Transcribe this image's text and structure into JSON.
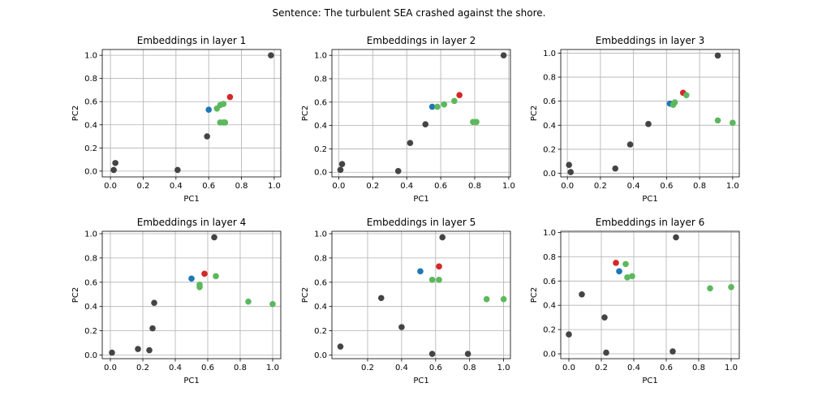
{
  "figure": {
    "suptitle": "Sentence: The turbulent SEA crashed against the shore."
  },
  "colors": {
    "other": "#444444",
    "the": "#1f77b4",
    "sea": "#d62728",
    "green": "#5cb85c",
    "grid": "#b0b0b0"
  },
  "chart_data": [
    {
      "type": "scatter",
      "title": "Embeddings in layer 1",
      "xlabel": "PC1",
      "ylabel": "PC2",
      "xlim": [
        -0.05,
        1.04
      ],
      "ylim": [
        -0.05,
        1.05
      ],
      "xticks": [
        "0.0",
        "0.2",
        "0.4",
        "0.6",
        "0.8",
        "1.0"
      ],
      "yticks": [
        "0.0",
        "0.2",
        "0.4",
        "0.6",
        "0.8",
        "1.0"
      ],
      "grid": true,
      "points": [
        {
          "x": 0.98,
          "y": 1.0,
          "c": "other"
        },
        {
          "x": 0.02,
          "y": 0.01,
          "c": "other"
        },
        {
          "x": 0.03,
          "y": 0.07,
          "c": "other"
        },
        {
          "x": 0.41,
          "y": 0.01,
          "c": "other"
        },
        {
          "x": 0.59,
          "y": 0.3,
          "c": "other"
        },
        {
          "x": 0.6,
          "y": 0.53,
          "c": "the"
        },
        {
          "x": 0.73,
          "y": 0.64,
          "c": "sea"
        },
        {
          "x": 0.65,
          "y": 0.54,
          "c": "green"
        },
        {
          "x": 0.67,
          "y": 0.57,
          "c": "green"
        },
        {
          "x": 0.69,
          "y": 0.58,
          "c": "green"
        },
        {
          "x": 0.67,
          "y": 0.42,
          "c": "green"
        },
        {
          "x": 0.69,
          "y": 0.42,
          "c": "green"
        },
        {
          "x": 0.7,
          "y": 0.42,
          "c": "green"
        }
      ]
    },
    {
      "type": "scatter",
      "title": "Embeddings in layer 2",
      "xlabel": "PC1",
      "ylabel": "PC2",
      "xlim": [
        -0.04,
        1.01
      ],
      "ylim": [
        -0.04,
        1.05
      ],
      "xticks": [
        "0.0",
        "0.2",
        "0.4",
        "0.6",
        "0.8",
        "1.0"
      ],
      "yticks": [
        "0.0",
        "0.2",
        "0.4",
        "0.6",
        "0.8",
        "1.0"
      ],
      "grid": true,
      "points": [
        {
          "x": 0.97,
          "y": 1.0,
          "c": "other"
        },
        {
          "x": 0.01,
          "y": 0.02,
          "c": "other"
        },
        {
          "x": 0.02,
          "y": 0.07,
          "c": "other"
        },
        {
          "x": 0.35,
          "y": 0.01,
          "c": "other"
        },
        {
          "x": 0.42,
          "y": 0.25,
          "c": "other"
        },
        {
          "x": 0.51,
          "y": 0.41,
          "c": "other"
        },
        {
          "x": 0.55,
          "y": 0.56,
          "c": "the"
        },
        {
          "x": 0.71,
          "y": 0.66,
          "c": "sea"
        },
        {
          "x": 0.58,
          "y": 0.56,
          "c": "green"
        },
        {
          "x": 0.62,
          "y": 0.58,
          "c": "green"
        },
        {
          "x": 0.68,
          "y": 0.61,
          "c": "green"
        },
        {
          "x": 0.79,
          "y": 0.43,
          "c": "green"
        },
        {
          "x": 0.81,
          "y": 0.43,
          "c": "green"
        }
      ]
    },
    {
      "type": "scatter",
      "title": "Embeddings in layer 3",
      "xlabel": "PC1",
      "ylabel": "PC2",
      "xlim": [
        -0.04,
        1.04
      ],
      "ylim": [
        -0.03,
        1.03
      ],
      "xticks": [
        "0.0",
        "0.2",
        "0.4",
        "0.6",
        "0.8",
        "1.0"
      ],
      "yticks": [
        "0.0",
        "0.2",
        "0.4",
        "0.6",
        "0.8",
        "1.0"
      ],
      "grid": true,
      "points": [
        {
          "x": 0.91,
          "y": 0.98,
          "c": "other"
        },
        {
          "x": 0.01,
          "y": 0.07,
          "c": "other"
        },
        {
          "x": 0.02,
          "y": 0.01,
          "c": "other"
        },
        {
          "x": 0.29,
          "y": 0.04,
          "c": "other"
        },
        {
          "x": 0.38,
          "y": 0.24,
          "c": "other"
        },
        {
          "x": 0.49,
          "y": 0.41,
          "c": "other"
        },
        {
          "x": 0.62,
          "y": 0.58,
          "c": "the"
        },
        {
          "x": 0.7,
          "y": 0.67,
          "c": "sea"
        },
        {
          "x": 0.64,
          "y": 0.57,
          "c": "green"
        },
        {
          "x": 0.65,
          "y": 0.59,
          "c": "green"
        },
        {
          "x": 0.72,
          "y": 0.65,
          "c": "green"
        },
        {
          "x": 0.91,
          "y": 0.44,
          "c": "green"
        },
        {
          "x": 1.0,
          "y": 0.42,
          "c": "green"
        }
      ]
    },
    {
      "type": "scatter",
      "title": "Embeddings in layer 4",
      "xlabel": "PC1",
      "ylabel": "PC2",
      "xlim": [
        -0.05,
        1.05
      ],
      "ylim": [
        -0.03,
        1.02
      ],
      "xticks": [
        "0.0",
        "0.2",
        "0.4",
        "0.6",
        "0.8",
        "1.0"
      ],
      "yticks": [
        "0.0",
        "0.2",
        "0.4",
        "0.6",
        "0.8",
        "1.0"
      ],
      "grid": true,
      "points": [
        {
          "x": 0.64,
          "y": 0.97,
          "c": "other"
        },
        {
          "x": 0.01,
          "y": 0.02,
          "c": "other"
        },
        {
          "x": 0.17,
          "y": 0.05,
          "c": "other"
        },
        {
          "x": 0.24,
          "y": 0.04,
          "c": "other"
        },
        {
          "x": 0.26,
          "y": 0.22,
          "c": "other"
        },
        {
          "x": 0.27,
          "y": 0.43,
          "c": "other"
        },
        {
          "x": 0.5,
          "y": 0.63,
          "c": "the"
        },
        {
          "x": 0.58,
          "y": 0.67,
          "c": "sea"
        },
        {
          "x": 0.55,
          "y": 0.56,
          "c": "green"
        },
        {
          "x": 0.55,
          "y": 0.58,
          "c": "green"
        },
        {
          "x": 0.65,
          "y": 0.65,
          "c": "green"
        },
        {
          "x": 0.85,
          "y": 0.44,
          "c": "green"
        },
        {
          "x": 1.0,
          "y": 0.42,
          "c": "green"
        }
      ]
    },
    {
      "type": "scatter",
      "title": "Embeddings in layer 5",
      "xlabel": "PC1",
      "ylabel": "PC2",
      "xlim": [
        -0.01,
        1.04
      ],
      "ylim": [
        -0.03,
        1.02
      ],
      "xticks": [
        "0.2",
        "0.4",
        "0.6",
        "0.8",
        "1.0"
      ],
      "yticks": [
        "0.0",
        "0.2",
        "0.4",
        "0.6",
        "0.8",
        "1.0"
      ],
      "grid": true,
      "points": [
        {
          "x": 0.64,
          "y": 0.97,
          "c": "other"
        },
        {
          "x": 0.04,
          "y": 0.07,
          "c": "other"
        },
        {
          "x": 0.28,
          "y": 0.47,
          "c": "other"
        },
        {
          "x": 0.4,
          "y": 0.23,
          "c": "other"
        },
        {
          "x": 0.58,
          "y": 0.01,
          "c": "other"
        },
        {
          "x": 0.79,
          "y": 0.01,
          "c": "other"
        },
        {
          "x": 0.51,
          "y": 0.69,
          "c": "the"
        },
        {
          "x": 0.62,
          "y": 0.73,
          "c": "sea"
        },
        {
          "x": 0.58,
          "y": 0.62,
          "c": "green"
        },
        {
          "x": 0.62,
          "y": 0.62,
          "c": "green"
        },
        {
          "x": 0.9,
          "y": 0.46,
          "c": "green"
        },
        {
          "x": 1.0,
          "y": 0.46,
          "c": "green"
        }
      ]
    },
    {
      "type": "scatter",
      "title": "Embeddings in layer 6",
      "xlabel": "PC1",
      "ylabel": "PC2",
      "xlim": [
        -0.05,
        1.05
      ],
      "ylim": [
        -0.04,
        1.01
      ],
      "xticks": [
        "0.0",
        "0.2",
        "0.4",
        "0.6",
        "0.8",
        "1.0"
      ],
      "yticks": [
        "0.0",
        "0.2",
        "0.4",
        "0.6",
        "0.8",
        "1.0"
      ],
      "grid": true,
      "points": [
        {
          "x": 0.66,
          "y": 0.96,
          "c": "other"
        },
        {
          "x": 0.0,
          "y": 0.16,
          "c": "other"
        },
        {
          "x": 0.08,
          "y": 0.49,
          "c": "other"
        },
        {
          "x": 0.22,
          "y": 0.3,
          "c": "other"
        },
        {
          "x": 0.23,
          "y": 0.01,
          "c": "other"
        },
        {
          "x": 0.64,
          "y": 0.02,
          "c": "other"
        },
        {
          "x": 0.31,
          "y": 0.68,
          "c": "the"
        },
        {
          "x": 0.29,
          "y": 0.75,
          "c": "sea"
        },
        {
          "x": 0.35,
          "y": 0.74,
          "c": "green"
        },
        {
          "x": 0.36,
          "y": 0.63,
          "c": "green"
        },
        {
          "x": 0.39,
          "y": 0.64,
          "c": "green"
        },
        {
          "x": 0.87,
          "y": 0.54,
          "c": "green"
        },
        {
          "x": 1.0,
          "y": 0.55,
          "c": "green"
        }
      ]
    }
  ]
}
